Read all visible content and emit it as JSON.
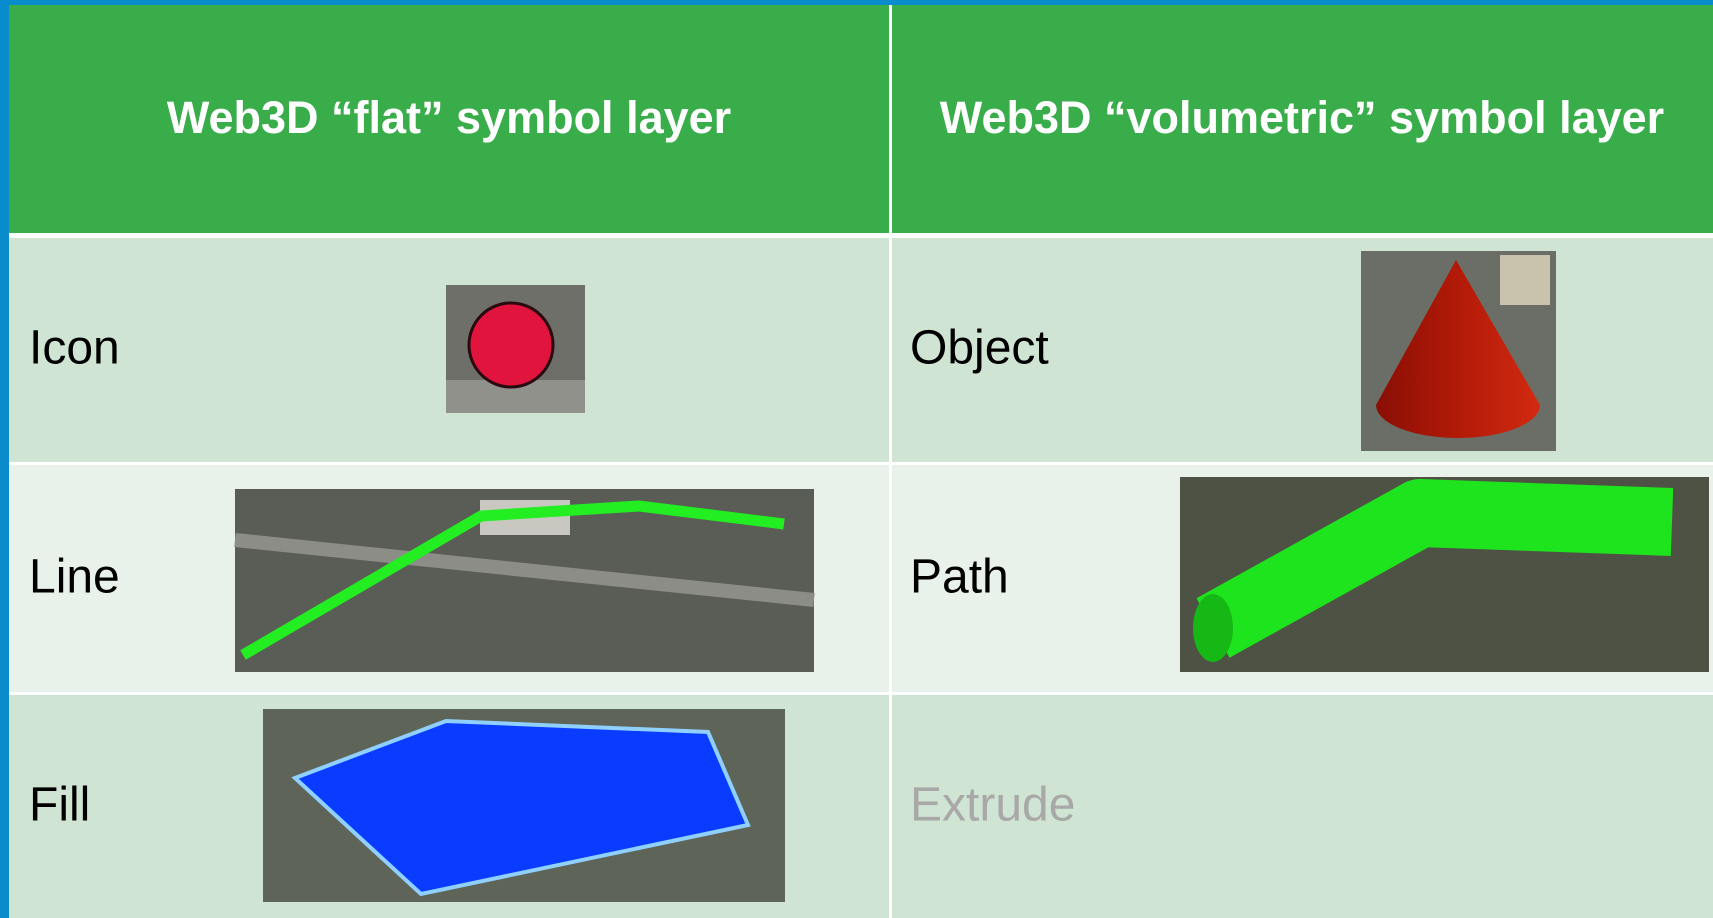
{
  "table": {
    "header": [
      "Web3D “flat” symbol layer",
      "Web3D “volumetric” symbol layer"
    ],
    "rows": [
      [
        "Icon",
        "Object"
      ],
      [
        "Line",
        "Path"
      ],
      [
        "Fill",
        "Extrude"
      ]
    ]
  }
}
